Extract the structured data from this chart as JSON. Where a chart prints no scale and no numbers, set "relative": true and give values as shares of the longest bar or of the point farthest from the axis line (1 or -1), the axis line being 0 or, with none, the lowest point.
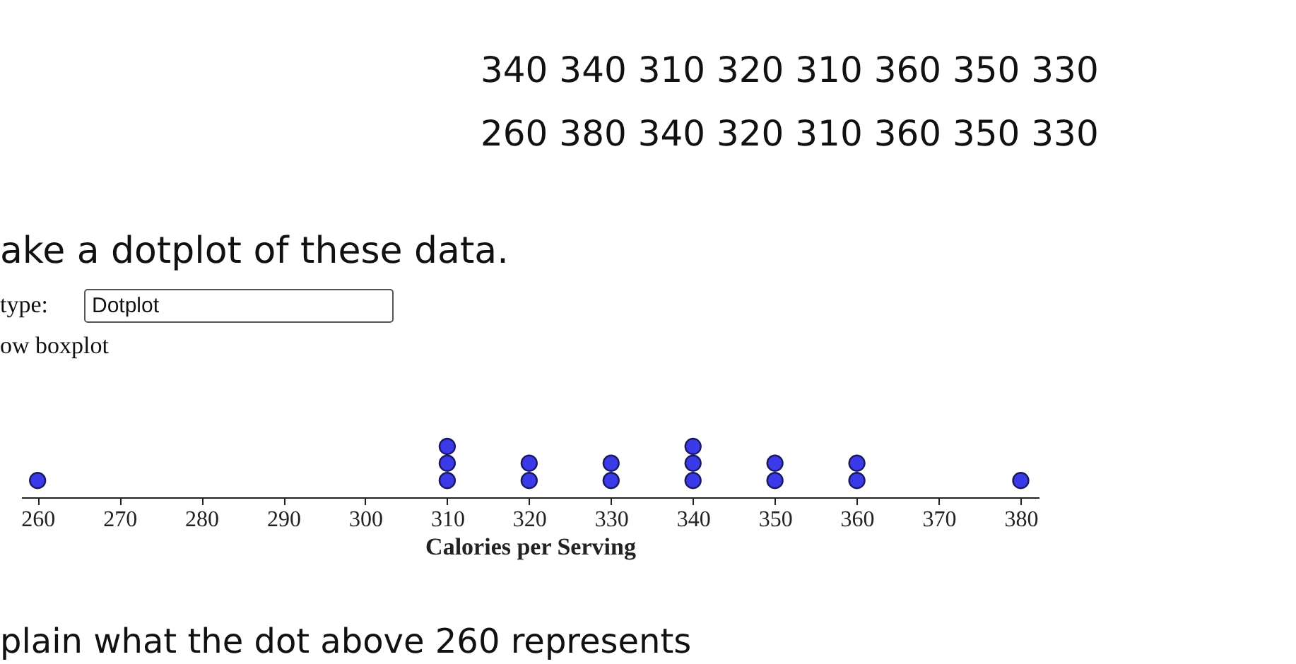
{
  "chart_data": {
    "type": "scatter",
    "relative": true,
    "marker": "circle",
    "grid": false,
    "xlabel": "Calories per Serving",
    "xlim": [
      258,
      382.2
    ],
    "xticks": [
      260,
      270,
      280,
      290,
      300,
      310,
      320,
      330,
      340,
      350,
      360,
      370,
      380
    ],
    "series": [
      {
        "color": "#3a3ae8",
        "x": [
          260,
          310,
          310,
          310,
          320,
          320,
          330,
          330,
          340,
          340,
          340,
          350,
          350,
          360,
          360,
          380
        ],
        "values": [
          0.33,
          0.33,
          0.67,
          1,
          0.33,
          0.67,
          0.33,
          0.67,
          0.33,
          0.67,
          1,
          0.33,
          0.67,
          0.33,
          0.67,
          0.33
        ]
      }
    ],
    "annotations": [
      "340  340  310  320  310  360  350  330",
      "260  380  340  320  310  360  350  330",
      "ake a dotplot of these data.",
      "type:",
      "Dotplot",
      "ow boxplot",
      "plain what the dot above 260 represents"
    ]
  }
}
